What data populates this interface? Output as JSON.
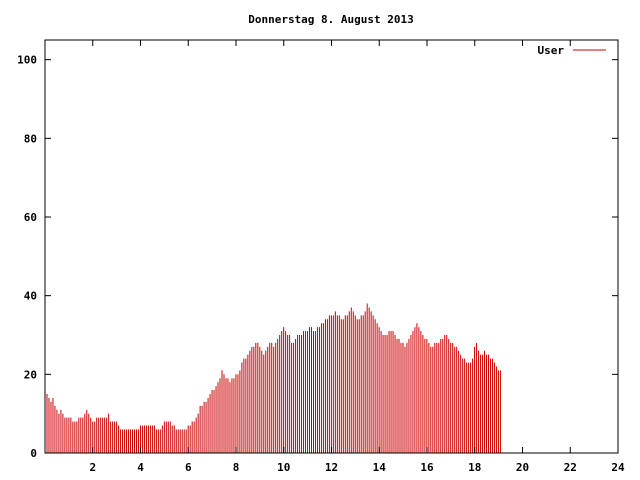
{
  "chart_data": {
    "type": "bar",
    "title": "Donnerstag 8. August 2013",
    "xlabel": "",
    "ylabel": "",
    "xlim": [
      0,
      24
    ],
    "ylim": [
      0,
      105
    ],
    "xticks": [
      2,
      4,
      6,
      8,
      10,
      12,
      14,
      16,
      18,
      20,
      22,
      24
    ],
    "yticks": [
      0,
      20,
      40,
      60,
      80,
      100
    ],
    "grid": false,
    "legend_position": "top-right",
    "series": [
      {
        "name": "User",
        "color": "#cc0000",
        "interval_hours": 0.0833,
        "values": [
          16,
          15,
          14,
          13,
          14,
          12,
          11,
          10,
          11,
          10,
          9,
          9,
          9,
          9,
          8,
          8,
          8,
          9,
          9,
          9,
          10,
          11,
          10,
          9,
          8,
          8,
          9,
          9,
          9,
          9,
          9,
          9,
          10,
          8,
          8,
          8,
          8,
          7,
          6,
          6,
          6,
          6,
          6,
          6,
          6,
          6,
          6,
          6,
          7,
          7,
          7,
          7,
          7,
          7,
          7,
          7,
          6,
          6,
          6,
          7,
          8,
          8,
          8,
          8,
          7,
          7,
          6,
          6,
          6,
          6,
          6,
          6,
          7,
          7,
          8,
          8,
          9,
          10,
          12,
          12,
          13,
          13,
          14,
          15,
          16,
          16,
          17,
          18,
          19,
          21,
          20,
          19,
          19,
          18,
          19,
          19,
          20,
          20,
          21,
          23,
          24,
          24,
          25,
          26,
          27,
          27,
          28,
          28,
          27,
          26,
          25,
          26,
          27,
          28,
          28,
          27,
          28,
          29,
          30,
          31,
          32,
          31,
          30,
          30,
          28,
          28,
          29,
          30,
          30,
          30,
          31,
          31,
          31,
          32,
          32,
          31,
          31,
          32,
          32,
          33,
          33,
          34,
          34,
          35,
          35,
          35,
          36,
          35,
          35,
          34,
          34,
          35,
          35,
          36,
          37,
          36,
          35,
          34,
          34,
          35,
          35,
          36,
          38,
          37,
          36,
          35,
          34,
          33,
          32,
          31,
          30,
          30,
          30,
          31,
          31,
          31,
          30,
          29,
          29,
          28,
          28,
          27,
          28,
          29,
          30,
          31,
          32,
          33,
          32,
          31,
          30,
          29,
          29,
          28,
          27,
          27,
          28,
          28,
          28,
          29,
          29,
          30,
          30,
          29,
          28,
          28,
          27,
          27,
          26,
          25,
          24,
          24,
          23,
          23,
          23,
          24,
          27,
          28,
          26,
          25,
          25,
          26,
          25,
          25,
          24,
          24,
          23,
          22,
          21,
          21
        ]
      }
    ]
  }
}
